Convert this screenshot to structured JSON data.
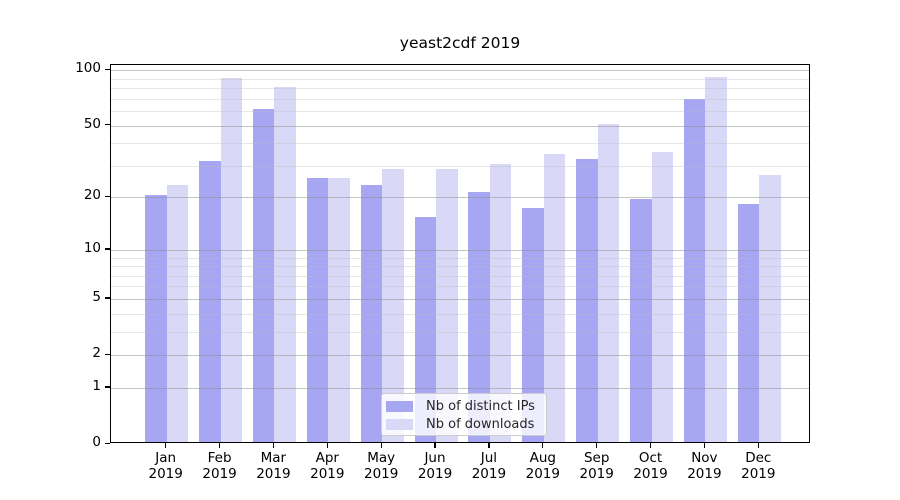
{
  "title": "yeast2cdf 2019",
  "chart_data": {
    "type": "bar",
    "title": "yeast2cdf 2019",
    "categories": [
      "Jan",
      "Feb",
      "Mar",
      "Apr",
      "May",
      "Jun",
      "Jul",
      "Aug",
      "Sep",
      "Oct",
      "Nov",
      "Dec"
    ],
    "year": "2019",
    "series": [
      {
        "name": "Nb of distinct IPs",
        "key": "distinct-ips",
        "color": "#a6a6f2",
        "values": [
          20,
          31,
          60,
          25,
          23,
          15,
          21,
          17,
          32,
          19,
          68,
          18
        ]
      },
      {
        "name": "Nb of downloads",
        "key": "downloads",
        "color": "#d9d9f7",
        "values": [
          23,
          89,
          79,
          25,
          28,
          28,
          30,
          34,
          50,
          35,
          90,
          26
        ]
      }
    ],
    "yscale": "log1p",
    "ylim": [
      0,
      106
    ],
    "yticks_major": [
      0,
      1,
      2,
      5,
      10,
      20,
      50,
      100
    ],
    "yticks_minor": [
      3,
      4,
      6,
      7,
      8,
      9,
      30,
      40,
      60,
      70,
      80,
      90
    ],
    "grid": true,
    "legend_position": "lower center",
    "xlabel": "",
    "ylabel": ""
  }
}
